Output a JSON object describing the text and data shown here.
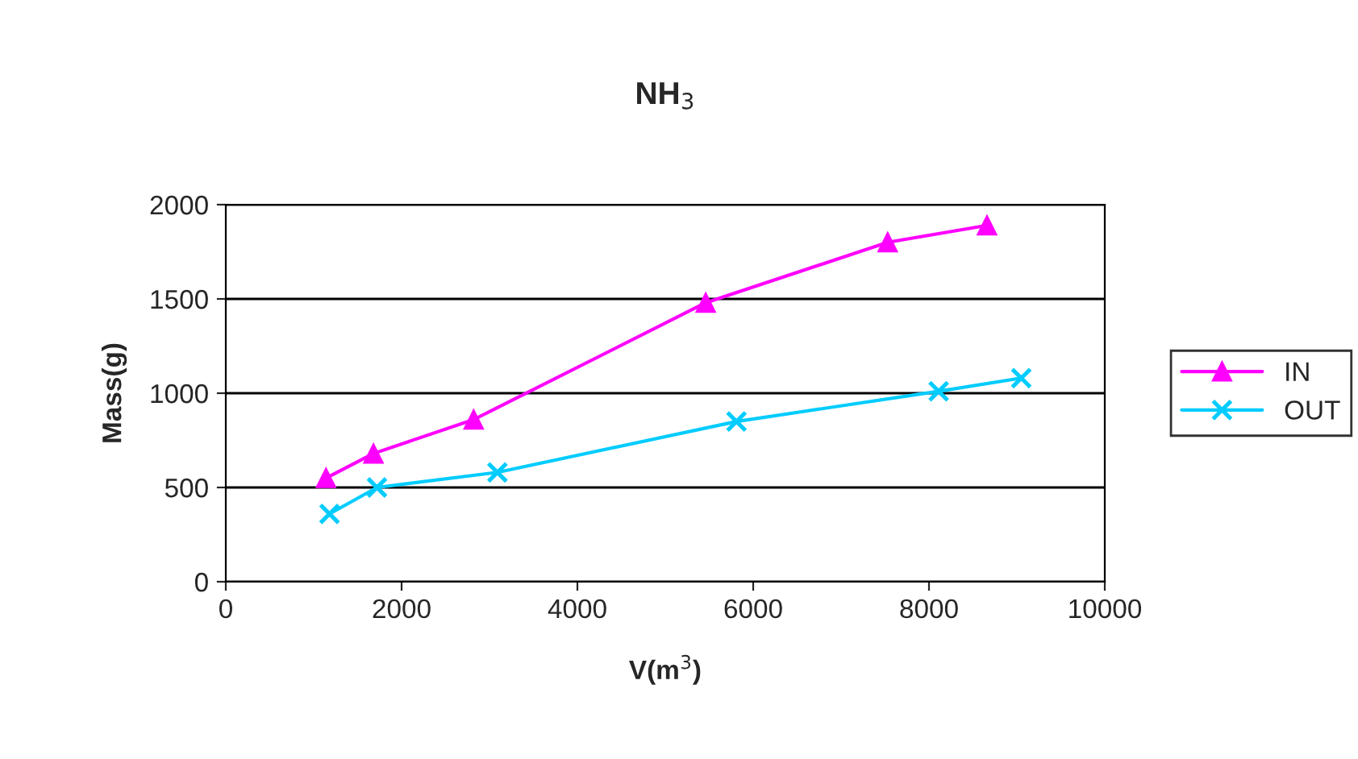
{
  "chart_data": {
    "type": "line",
    "title": "NH$_{3}$",
    "xlabel": "V(m$^{3}$)",
    "ylabel": "Mass(g)",
    "series": [
      {
        "name": "IN",
        "color": "#ff00ff",
        "marker": "triangle",
        "x": [
          1140,
          1680,
          2820,
          5460,
          7530,
          8660
        ],
        "values": [
          550,
          680,
          860,
          1480,
          1800,
          1890
        ]
      },
      {
        "name": "OUT",
        "color": "#00ccff",
        "marker": "cross",
        "x": [
          1180,
          1720,
          3090,
          5810,
          8110,
          9050
        ],
        "values": [
          360,
          500,
          580,
          850,
          1010,
          1080
        ]
      }
    ],
    "xlim": [
      0,
      10000
    ],
    "xticks": [
      0,
      2000,
      4000,
      6000,
      8000,
      10000
    ],
    "ylim": [
      0,
      2000
    ],
    "yticks": [
      0,
      500,
      1000,
      1500,
      2000
    ],
    "grid": "y",
    "legend": "right",
    "line_style": "solid"
  }
}
